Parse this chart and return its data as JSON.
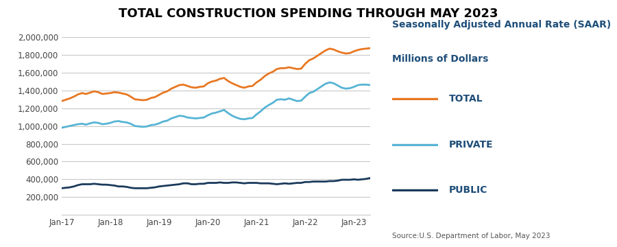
{
  "title": "TOTAL CONSTRUCTION SPENDING THROUGH MAY 2023",
  "subtitle_line1": "Seasonally Adjusted Annual Rate (SAAR)",
  "subtitle_line2": "Millions of Dollars",
  "source": "Source:U.S. Department of Labor, May 2023",
  "x_labels": [
    "Jan-17",
    "Jan-18",
    "Jan-19",
    "Jan-20",
    "Jan-21",
    "Jan-22",
    "Jan-23"
  ],
  "ylim": [
    0,
    2000000
  ],
  "yticks": [
    200000,
    400000,
    600000,
    800000,
    1000000,
    1200000,
    1400000,
    1600000,
    1800000,
    2000000
  ],
  "title_color": "#000000",
  "subtitle_color": "#1f4e79",
  "source_color": "#555555",
  "total_color": "#e87722",
  "private_color": "#56b4d4",
  "public_color": "#1a3a5c",
  "legend_label_total": "TOTAL",
  "legend_label_private": "PRIVATE",
  "legend_label_public": "PUBLIC",
  "total": [
    1280000,
    1295000,
    1310000,
    1330000,
    1355000,
    1370000,
    1360000,
    1375000,
    1390000,
    1380000,
    1360000,
    1365000,
    1370000,
    1380000,
    1375000,
    1365000,
    1355000,
    1330000,
    1300000,
    1295000,
    1290000,
    1295000,
    1315000,
    1325000,
    1350000,
    1375000,
    1390000,
    1420000,
    1440000,
    1460000,
    1465000,
    1450000,
    1435000,
    1430000,
    1440000,
    1445000,
    1480000,
    1500000,
    1510000,
    1530000,
    1540000,
    1505000,
    1480000,
    1460000,
    1440000,
    1430000,
    1445000,
    1450000,
    1490000,
    1520000,
    1560000,
    1590000,
    1610000,
    1640000,
    1650000,
    1650000,
    1660000,
    1650000,
    1640000,
    1645000,
    1700000,
    1740000,
    1760000,
    1790000,
    1820000,
    1850000,
    1870000,
    1860000,
    1840000,
    1825000,
    1815000,
    1820000,
    1840000,
    1855000,
    1865000,
    1870000,
    1875000
  ],
  "private": [
    980000,
    990000,
    1000000,
    1010000,
    1020000,
    1025000,
    1015000,
    1030000,
    1040000,
    1035000,
    1020000,
    1025000,
    1035000,
    1050000,
    1055000,
    1045000,
    1040000,
    1025000,
    1000000,
    995000,
    990000,
    995000,
    1010000,
    1015000,
    1030000,
    1050000,
    1060000,
    1085000,
    1100000,
    1115000,
    1110000,
    1095000,
    1090000,
    1085000,
    1090000,
    1095000,
    1120000,
    1140000,
    1150000,
    1165000,
    1180000,
    1145000,
    1115000,
    1095000,
    1080000,
    1075000,
    1085000,
    1090000,
    1130000,
    1165000,
    1205000,
    1235000,
    1260000,
    1295000,
    1300000,
    1295000,
    1310000,
    1295000,
    1280000,
    1285000,
    1330000,
    1370000,
    1385000,
    1415000,
    1445000,
    1475000,
    1490000,
    1480000,
    1455000,
    1430000,
    1420000,
    1425000,
    1440000,
    1460000,
    1465000,
    1465000,
    1460000
  ],
  "public": [
    300000,
    305000,
    310000,
    320000,
    335000,
    345000,
    345000,
    345000,
    350000,
    345000,
    340000,
    340000,
    335000,
    330000,
    320000,
    320000,
    315000,
    305000,
    300000,
    300000,
    300000,
    300000,
    305000,
    310000,
    320000,
    325000,
    330000,
    335000,
    340000,
    345000,
    355000,
    355000,
    345000,
    345000,
    350000,
    350000,
    360000,
    360000,
    360000,
    365000,
    360000,
    360000,
    365000,
    365000,
    360000,
    355000,
    360000,
    360000,
    360000,
    355000,
    355000,
    355000,
    350000,
    345000,
    350000,
    355000,
    350000,
    355000,
    360000,
    360000,
    370000,
    370000,
    375000,
    375000,
    375000,
    375000,
    380000,
    380000,
    385000,
    395000,
    395000,
    395000,
    400000,
    395000,
    400000,
    405000,
    415000
  ]
}
